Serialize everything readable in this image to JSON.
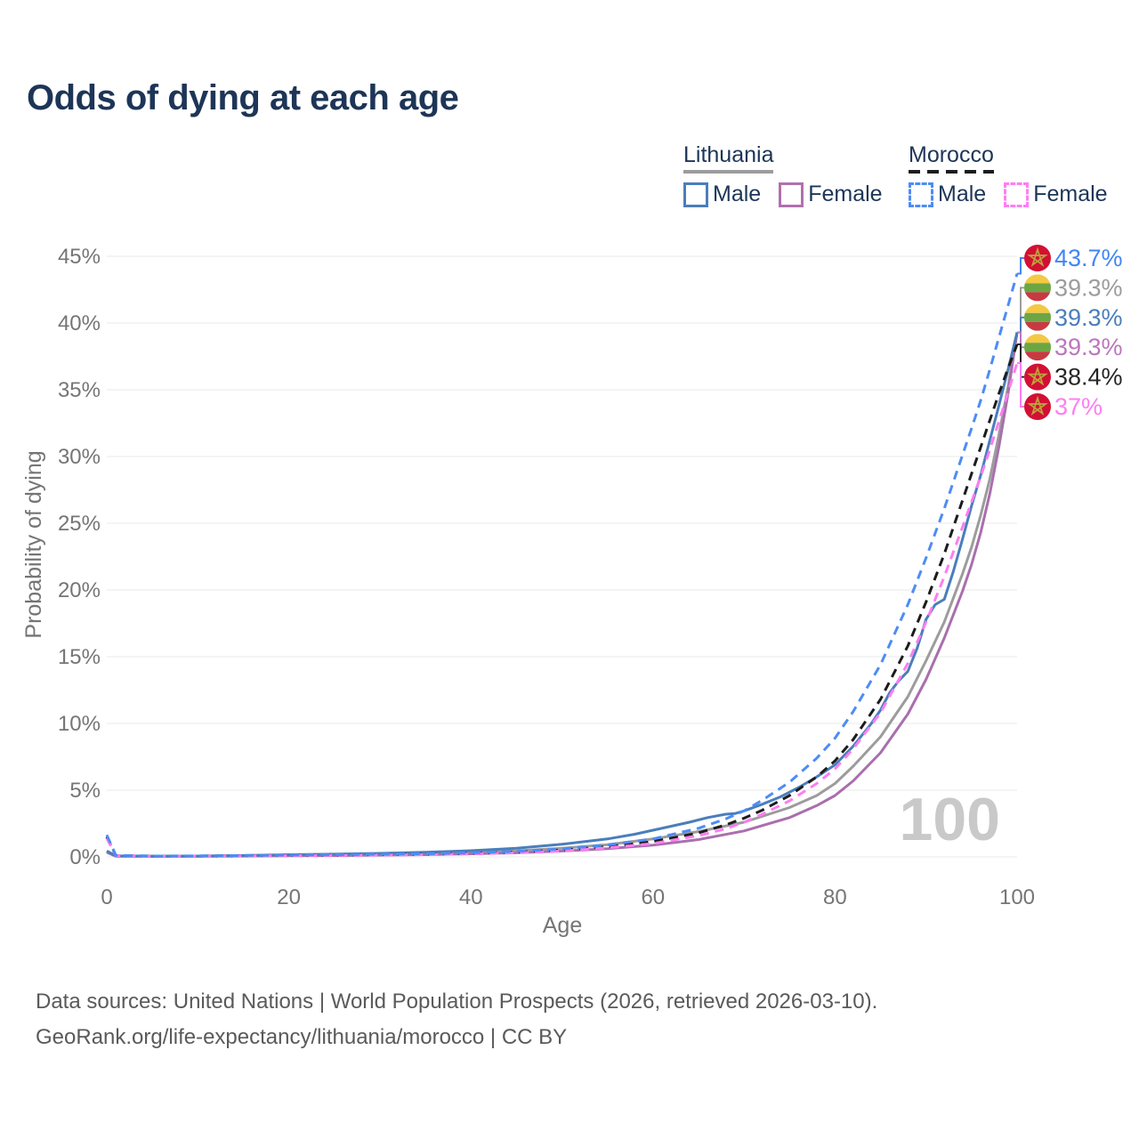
{
  "title": "Odds of dying at each age",
  "watermark": "100",
  "colors": {
    "title_text": "#1d3557",
    "legend_text": "#1d3557",
    "axis_text": "#757575",
    "gridline": "#e9e9e9",
    "watermark_text": "#c9c9c9",
    "footer_text": "#5a5a5a"
  },
  "legend": {
    "groups": [
      {
        "name": "Lithuania",
        "line_style": "solid",
        "line_color": "#9c9c9c",
        "items": [
          {
            "label": "Male",
            "color": "#4a7ebb",
            "dashed": false
          },
          {
            "label": "Female",
            "color": "#b26fae",
            "dashed": false
          }
        ]
      },
      {
        "name": "Morocco",
        "line_style": "dashed",
        "line_color": "#1c1c1c",
        "items": [
          {
            "label": "Male",
            "color": "#4d8cf5",
            "dashed": true
          },
          {
            "label": "Female",
            "color": "#ff7df2",
            "dashed": true
          }
        ]
      }
    ]
  },
  "chart_data": {
    "type": "line",
    "title": "Odds of dying at each age",
    "xlabel": "Age",
    "ylabel": "Probability of dying",
    "xlim": [
      0,
      100
    ],
    "ylim": [
      0,
      45
    ],
    "x_ticks": [
      0,
      20,
      40,
      60,
      80,
      100
    ],
    "y_ticks_pct": [
      0,
      5,
      10,
      15,
      20,
      25,
      30,
      35,
      40,
      45
    ],
    "grid": "horizontal",
    "legend_position": "top-right",
    "series": [
      {
        "name": "Lithuania Average",
        "color": "#9c9c9c",
        "dashed": false,
        "points": [
          [
            0,
            0.4
          ],
          [
            1,
            0.07
          ],
          [
            5,
            0.05
          ],
          [
            10,
            0.06
          ],
          [
            15,
            0.09
          ],
          [
            20,
            0.12
          ],
          [
            25,
            0.15
          ],
          [
            30,
            0.19
          ],
          [
            35,
            0.25
          ],
          [
            40,
            0.33
          ],
          [
            45,
            0.45
          ],
          [
            50,
            0.65
          ],
          [
            55,
            0.92
          ],
          [
            60,
            1.35
          ],
          [
            65,
            1.9
          ],
          [
            70,
            2.6
          ],
          [
            75,
            3.7
          ],
          [
            78,
            4.6
          ],
          [
            80,
            5.5
          ],
          [
            82,
            6.8
          ],
          [
            85,
            9.0
          ],
          [
            88,
            12.0
          ],
          [
            90,
            14.7
          ],
          [
            92,
            17.6
          ],
          [
            94,
            21.2
          ],
          [
            95,
            23.2
          ],
          [
            96,
            25.6
          ],
          [
            97,
            28.3
          ],
          [
            98,
            31.6
          ],
          [
            99,
            35.2
          ],
          [
            100,
            39.3
          ]
        ]
      },
      {
        "name": "Lithuania Female",
        "color": "#a96fad",
        "dashed": false,
        "points": [
          [
            0,
            0.35
          ],
          [
            1,
            0.05
          ],
          [
            5,
            0.04
          ],
          [
            10,
            0.04
          ],
          [
            15,
            0.06
          ],
          [
            20,
            0.08
          ],
          [
            25,
            0.1
          ],
          [
            30,
            0.13
          ],
          [
            35,
            0.17
          ],
          [
            40,
            0.23
          ],
          [
            45,
            0.31
          ],
          [
            50,
            0.44
          ],
          [
            55,
            0.62
          ],
          [
            60,
            0.88
          ],
          [
            65,
            1.3
          ],
          [
            70,
            1.95
          ],
          [
            75,
            2.95
          ],
          [
            78,
            3.85
          ],
          [
            80,
            4.6
          ],
          [
            82,
            5.7
          ],
          [
            85,
            7.8
          ],
          [
            88,
            10.7
          ],
          [
            90,
            13.3
          ],
          [
            92,
            16.4
          ],
          [
            94,
            19.9
          ],
          [
            95,
            21.9
          ],
          [
            96,
            24.3
          ],
          [
            97,
            27.2
          ],
          [
            98,
            30.7
          ],
          [
            99,
            34.7
          ],
          [
            100,
            39.3
          ]
        ]
      },
      {
        "name": "Lithuania Male",
        "color": "#4a7ebb",
        "dashed": false,
        "points": [
          [
            0,
            0.45
          ],
          [
            1,
            0.08
          ],
          [
            5,
            0.06
          ],
          [
            10,
            0.07
          ],
          [
            15,
            0.11
          ],
          [
            20,
            0.17
          ],
          [
            25,
            0.21
          ],
          [
            30,
            0.27
          ],
          [
            35,
            0.35
          ],
          [
            40,
            0.47
          ],
          [
            45,
            0.65
          ],
          [
            50,
            0.95
          ],
          [
            55,
            1.35
          ],
          [
            58,
            1.7
          ],
          [
            60,
            2.0
          ],
          [
            62,
            2.3
          ],
          [
            64,
            2.6
          ],
          [
            66,
            2.95
          ],
          [
            68,
            3.2
          ],
          [
            69,
            3.25
          ],
          [
            70,
            3.45
          ],
          [
            72,
            3.95
          ],
          [
            74,
            4.5
          ],
          [
            76,
            5.2
          ],
          [
            78,
            6.0
          ],
          [
            80,
            6.9
          ],
          [
            82,
            8.3
          ],
          [
            84,
            10.0
          ],
          [
            85,
            11.0
          ],
          [
            86,
            12.3
          ],
          [
            87,
            13.2
          ],
          [
            88,
            13.9
          ],
          [
            89,
            15.6
          ],
          [
            90,
            17.8
          ],
          [
            91,
            18.9
          ],
          [
            92,
            19.3
          ],
          [
            93,
            21.4
          ],
          [
            94,
            23.8
          ],
          [
            95,
            26.3
          ],
          [
            96,
            28.6
          ],
          [
            97,
            31.2
          ],
          [
            98,
            33.8
          ],
          [
            99,
            36.5
          ],
          [
            100,
            39.3
          ]
        ]
      },
      {
        "name": "Morocco Average",
        "color": "#1c1c1c",
        "dashed": true,
        "points": [
          [
            0,
            1.5
          ],
          [
            1,
            0.11
          ],
          [
            5,
            0.06
          ],
          [
            10,
            0.07
          ],
          [
            15,
            0.09
          ],
          [
            20,
            0.12
          ],
          [
            25,
            0.14
          ],
          [
            30,
            0.17
          ],
          [
            35,
            0.21
          ],
          [
            40,
            0.26
          ],
          [
            45,
            0.36
          ],
          [
            50,
            0.52
          ],
          [
            55,
            0.78
          ],
          [
            60,
            1.15
          ],
          [
            65,
            1.8
          ],
          [
            68,
            2.4
          ],
          [
            70,
            2.9
          ],
          [
            72,
            3.5
          ],
          [
            75,
            4.6
          ],
          [
            78,
            6.0
          ],
          [
            80,
            7.2
          ],
          [
            82,
            8.8
          ],
          [
            85,
            11.8
          ],
          [
            88,
            15.8
          ],
          [
            90,
            19.1
          ],
          [
            92,
            22.7
          ],
          [
            94,
            26.7
          ],
          [
            95,
            28.7
          ],
          [
            96,
            30.7
          ],
          [
            97,
            32.7
          ],
          [
            98,
            34.7
          ],
          [
            99,
            36.6
          ],
          [
            100,
            38.4
          ]
        ]
      },
      {
        "name": "Morocco Female",
        "color": "#ff7df2",
        "dashed": true,
        "points": [
          [
            0,
            1.4
          ],
          [
            1,
            0.1
          ],
          [
            5,
            0.05
          ],
          [
            10,
            0.06
          ],
          [
            15,
            0.08
          ],
          [
            20,
            0.1
          ],
          [
            25,
            0.12
          ],
          [
            30,
            0.14
          ],
          [
            35,
            0.17
          ],
          [
            40,
            0.22
          ],
          [
            45,
            0.31
          ],
          [
            50,
            0.45
          ],
          [
            55,
            0.68
          ],
          [
            60,
            1.0
          ],
          [
            65,
            1.6
          ],
          [
            68,
            2.1
          ],
          [
            70,
            2.6
          ],
          [
            72,
            3.2
          ],
          [
            75,
            4.2
          ],
          [
            78,
            5.5
          ],
          [
            80,
            6.6
          ],
          [
            82,
            8.1
          ],
          [
            85,
            10.8
          ],
          [
            88,
            14.5
          ],
          [
            90,
            17.6
          ],
          [
            92,
            21.0
          ],
          [
            94,
            24.7
          ],
          [
            95,
            26.6
          ],
          [
            96,
            28.5
          ],
          [
            97,
            30.5
          ],
          [
            98,
            32.6
          ],
          [
            99,
            34.8
          ],
          [
            100,
            37
          ]
        ]
      },
      {
        "name": "Morocco Male",
        "color": "#4d8cf5",
        "dashed": true,
        "points": [
          [
            0,
            1.65
          ],
          [
            1,
            0.12
          ],
          [
            5,
            0.07
          ],
          [
            10,
            0.08
          ],
          [
            15,
            0.11
          ],
          [
            20,
            0.14
          ],
          [
            25,
            0.17
          ],
          [
            30,
            0.2
          ],
          [
            35,
            0.24
          ],
          [
            40,
            0.3
          ],
          [
            45,
            0.42
          ],
          [
            50,
            0.6
          ],
          [
            55,
            0.9
          ],
          [
            60,
            1.35
          ],
          [
            65,
            2.15
          ],
          [
            68,
            2.85
          ],
          [
            70,
            3.45
          ],
          [
            72,
            4.25
          ],
          [
            75,
            5.6
          ],
          [
            78,
            7.4
          ],
          [
            80,
            8.9
          ],
          [
            82,
            10.9
          ],
          [
            85,
            14.4
          ],
          [
            88,
            18.9
          ],
          [
            90,
            22.4
          ],
          [
            92,
            26.1
          ],
          [
            94,
            30.1
          ],
          [
            95,
            32.1
          ],
          [
            96,
            34.2
          ],
          [
            97,
            36.5
          ],
          [
            98,
            38.9
          ],
          [
            99,
            41.3
          ],
          [
            100,
            43.7
          ]
        ]
      }
    ],
    "end_labels": [
      {
        "text": "43.7%",
        "value": 43.7,
        "flag": "morocco",
        "color": "#4285f4",
        "series": "Morocco Male"
      },
      {
        "text": "39.3%",
        "value": 39.3,
        "flag": "lithuania",
        "color": "#9c9c9c",
        "series": "Lithuania Average"
      },
      {
        "text": "39.3%",
        "value": 39.3,
        "flag": "lithuania",
        "color": "#4a7ebb",
        "series": "Lithuania Male"
      },
      {
        "text": "39.3%",
        "value": 39.3,
        "flag": "lithuania",
        "color": "#bb77bb",
        "series": "Lithuania Female"
      },
      {
        "text": "38.4%",
        "value": 38.4,
        "flag": "morocco",
        "color": "#262626",
        "series": "Morocco Average"
      },
      {
        "text": "37%",
        "value": 37.0,
        "flag": "morocco",
        "color": "#ff7df2",
        "series": "Morocco Female"
      }
    ],
    "flags": {
      "lithuania": {
        "bands": [
          "#f3c843",
          "#6ca644",
          "#c73a42"
        ]
      },
      "morocco": {
        "background": "#d21034",
        "star": "#bfa23c"
      }
    }
  },
  "footer": {
    "line1": "Data sources: United Nations | World Population Prospects (2026, retrieved 2026-03-10).",
    "line2": "GeoRank.org/life-expectancy/lithuania/morocco | CC BY"
  }
}
